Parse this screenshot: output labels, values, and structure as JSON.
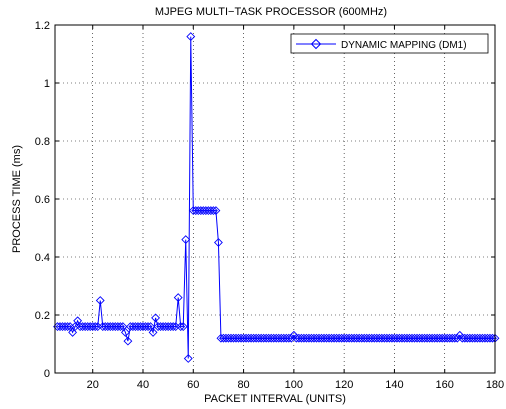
{
  "chart_data": {
    "type": "line",
    "title": "MJPEG MULTI−TASK PROCESSOR (600MHz)",
    "xlabel": "PACKET INTERVAL (UNITS)",
    "ylabel": "PROCESS TIME (ms)",
    "xlim": [
      5,
      180
    ],
    "ylim": [
      0,
      1.2
    ],
    "xticks": [
      20,
      40,
      60,
      80,
      100,
      120,
      140,
      160,
      180
    ],
    "yticks": [
      0,
      0.2,
      0.4,
      0.6,
      0.8,
      1,
      1.2
    ],
    "grid": true,
    "legend_position": "top-right",
    "series": [
      {
        "name": "DYNAMIC MAPPING (DM1)",
        "color": "#0000ff",
        "marker": "diamond",
        "x": [
          6,
          7,
          8,
          9,
          10,
          11,
          12,
          13,
          14,
          15,
          16,
          17,
          18,
          19,
          20,
          21,
          22,
          23,
          24,
          25,
          26,
          27,
          28,
          29,
          30,
          31,
          32,
          33,
          34,
          35,
          36,
          37,
          38,
          39,
          40,
          41,
          42,
          43,
          44,
          45,
          46,
          47,
          48,
          49,
          50,
          51,
          52,
          53,
          54,
          55,
          56,
          57,
          58,
          59,
          60,
          61,
          62,
          63,
          64,
          65,
          66,
          67,
          68,
          69,
          70,
          71,
          72,
          73,
          74,
          75,
          76,
          77,
          78,
          79,
          80,
          81,
          82,
          83,
          84,
          85,
          86,
          87,
          88,
          89,
          90,
          91,
          92,
          93,
          94,
          95,
          96,
          97,
          98,
          99,
          100,
          101,
          102,
          103,
          104,
          105,
          106,
          107,
          108,
          109,
          110,
          111,
          112,
          113,
          114,
          115,
          116,
          117,
          118,
          119,
          120,
          121,
          122,
          123,
          124,
          125,
          126,
          127,
          128,
          129,
          130,
          131,
          132,
          133,
          134,
          135,
          136,
          137,
          138,
          139,
          140,
          141,
          142,
          143,
          144,
          145,
          146,
          147,
          148,
          149,
          150,
          151,
          152,
          153,
          154,
          155,
          156,
          157,
          158,
          159,
          160,
          161,
          162,
          163,
          164,
          165,
          166,
          167,
          168,
          169,
          170,
          171,
          172,
          173,
          174,
          175,
          176,
          177,
          178,
          179,
          180
        ],
        "y": [
          0.16,
          0.16,
          0.16,
          0.16,
          0.16,
          0.16,
          0.14,
          0.16,
          0.18,
          0.16,
          0.16,
          0.16,
          0.16,
          0.16,
          0.16,
          0.16,
          0.16,
          0.25,
          0.16,
          0.16,
          0.16,
          0.16,
          0.16,
          0.16,
          0.16,
          0.16,
          0.16,
          0.14,
          0.11,
          0.16,
          0.16,
          0.16,
          0.16,
          0.16,
          0.16,
          0.16,
          0.16,
          0.16,
          0.14,
          0.19,
          0.16,
          0.16,
          0.16,
          0.16,
          0.16,
          0.16,
          0.16,
          0.16,
          0.26,
          0.16,
          0.16,
          0.46,
          0.05,
          1.16,
          0.56,
          0.56,
          0.56,
          0.56,
          0.56,
          0.56,
          0.56,
          0.56,
          0.56,
          0.56,
          0.45,
          0.12,
          0.12,
          0.12,
          0.12,
          0.12,
          0.12,
          0.12,
          0.12,
          0.12,
          0.12,
          0.12,
          0.12,
          0.12,
          0.12,
          0.12,
          0.12,
          0.12,
          0.12,
          0.12,
          0.12,
          0.12,
          0.12,
          0.12,
          0.12,
          0.12,
          0.12,
          0.12,
          0.12,
          0.12,
          0.13,
          0.12,
          0.12,
          0.12,
          0.12,
          0.12,
          0.12,
          0.12,
          0.12,
          0.12,
          0.12,
          0.12,
          0.12,
          0.12,
          0.12,
          0.12,
          0.12,
          0.12,
          0.12,
          0.12,
          0.12,
          0.12,
          0.12,
          0.12,
          0.12,
          0.12,
          0.12,
          0.12,
          0.12,
          0.12,
          0.12,
          0.12,
          0.12,
          0.12,
          0.12,
          0.12,
          0.12,
          0.12,
          0.12,
          0.12,
          0.12,
          0.12,
          0.12,
          0.12,
          0.12,
          0.12,
          0.12,
          0.12,
          0.12,
          0.12,
          0.12,
          0.12,
          0.12,
          0.12,
          0.12,
          0.12,
          0.12,
          0.12,
          0.12,
          0.12,
          0.12,
          0.12,
          0.12,
          0.12,
          0.12,
          0.12,
          0.13,
          0.12,
          0.12,
          0.12,
          0.12,
          0.12,
          0.12,
          0.12,
          0.12,
          0.12,
          0.12,
          0.12,
          0.12,
          0.12,
          0.12
        ]
      }
    ]
  }
}
